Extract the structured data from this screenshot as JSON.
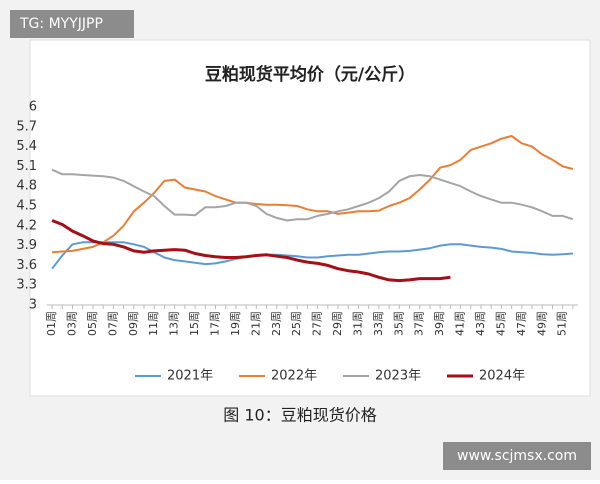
{
  "watermark_top": "TG: MYYJJPP",
  "caption": "图 10：豆粕现货价格",
  "watermark_bottom": "www.scjmsx.com",
  "chart_data": {
    "type": "line",
    "title": "豆粕现货平均价（元/公斤）",
    "categories": [
      "01周",
      null,
      "03周",
      null,
      "05周",
      null,
      "07周",
      null,
      "09周",
      null,
      "11周",
      null,
      "13周",
      null,
      "15周",
      null,
      "17周",
      null,
      "19周",
      null,
      "21周",
      null,
      "23周",
      null,
      "25周",
      null,
      "27周",
      null,
      "29周",
      null,
      "31周",
      null,
      "33周",
      null,
      "35周",
      null,
      "37周",
      null,
      "39周",
      null,
      "41周",
      null,
      "43周",
      null,
      "45周",
      null,
      "47周",
      null,
      "49周",
      null,
      "51周",
      null
    ],
    "series": [
      {
        "name": "2021年",
        "color": "#5b9bd5",
        "values": [
          3.55,
          3.75,
          3.92,
          3.95,
          3.95,
          3.95,
          3.95,
          3.95,
          3.92,
          3.88,
          3.8,
          3.72,
          3.68,
          3.66,
          3.64,
          3.62,
          3.63,
          3.66,
          3.7,
          3.73,
          3.75,
          3.76,
          3.76,
          3.75,
          3.74,
          3.72,
          3.72,
          3.74,
          3.75,
          3.76,
          3.76,
          3.78,
          3.8,
          3.81,
          3.81,
          3.82,
          3.84,
          3.86,
          3.9,
          3.92,
          3.92,
          3.9,
          3.88,
          3.87,
          3.85,
          3.81,
          3.8,
          3.79,
          3.77,
          3.76,
          3.77,
          3.78
        ]
      },
      {
        "name": "2022年",
        "color": "#ed7d31",
        "values": [
          3.8,
          3.81,
          3.82,
          3.85,
          3.88,
          3.95,
          4.05,
          4.2,
          4.42,
          4.55,
          4.7,
          4.88,
          4.9,
          4.78,
          4.75,
          4.72,
          4.65,
          4.6,
          4.55,
          4.55,
          4.53,
          4.52,
          4.52,
          4.51,
          4.5,
          4.45,
          4.42,
          4.42,
          4.38,
          4.4,
          4.42,
          4.42,
          4.43,
          4.5,
          4.55,
          4.62,
          4.75,
          4.9,
          5.08,
          5.12,
          5.2,
          5.35,
          5.4,
          5.45,
          5.52,
          5.56,
          5.45,
          5.4,
          5.28,
          5.2,
          5.1,
          5.06
        ]
      },
      {
        "name": "2023年",
        "color": "#a5a5a5",
        "values": [
          5.05,
          4.98,
          4.98,
          4.97,
          4.96,
          4.95,
          4.93,
          4.88,
          4.8,
          4.72,
          4.65,
          4.5,
          4.37,
          4.37,
          4.36,
          4.48,
          4.48,
          4.5,
          4.55,
          4.55,
          4.5,
          4.38,
          4.32,
          4.28,
          4.3,
          4.3,
          4.35,
          4.38,
          4.42,
          4.45,
          4.5,
          4.55,
          4.62,
          4.72,
          4.88,
          4.95,
          4.97,
          4.95,
          4.9,
          4.85,
          4.8,
          4.72,
          4.65,
          4.6,
          4.55,
          4.55,
          4.52,
          4.48,
          4.42,
          4.35,
          4.35,
          4.3
        ]
      },
      {
        "name": "2024年",
        "color": "#a50f15",
        "values": [
          4.28,
          4.22,
          4.12,
          4.05,
          3.97,
          3.93,
          3.92,
          3.88,
          3.82,
          3.8,
          3.82,
          3.83,
          3.84,
          3.83,
          3.78,
          3.75,
          3.73,
          3.72,
          3.72,
          3.73,
          3.75,
          3.76,
          3.74,
          3.72,
          3.68,
          3.65,
          3.63,
          3.6,
          3.55,
          3.52,
          3.5,
          3.47,
          3.42,
          3.38,
          3.37,
          3.38,
          3.4,
          3.4,
          3.4,
          3.42,
          null,
          null,
          null,
          null,
          null,
          null,
          null,
          null,
          null,
          null,
          null,
          null
        ]
      }
    ],
    "ylim": [
      3,
      6
    ],
    "yticks": [
      3,
      3.3,
      3.6,
      3.9,
      4.2,
      4.5,
      4.8,
      5.1,
      5.4,
      5.7,
      6
    ],
    "grid": false,
    "legend": "bottom"
  }
}
